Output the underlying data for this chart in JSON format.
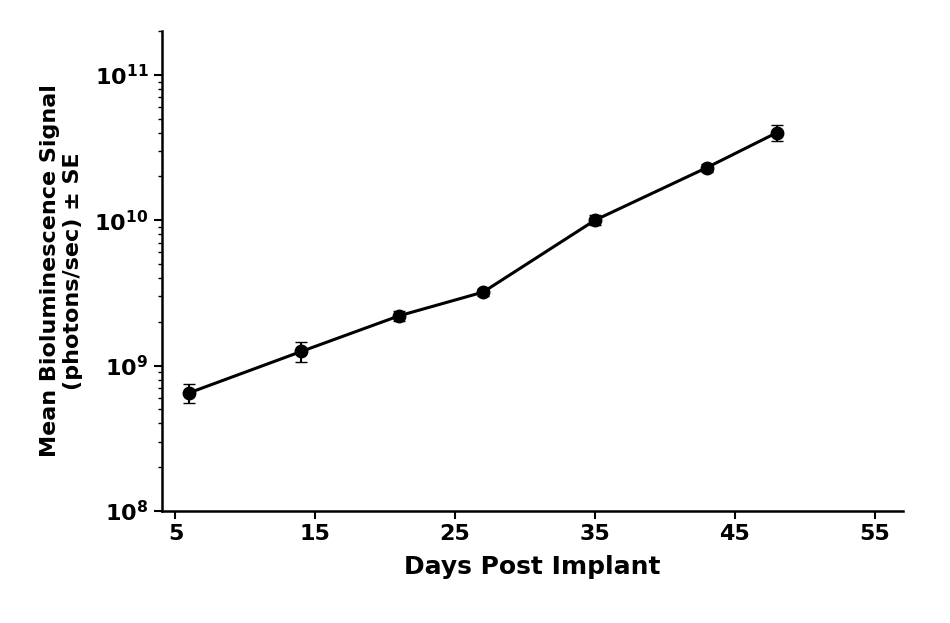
{
  "x": [
    6,
    14,
    21,
    27,
    35,
    43,
    48
  ],
  "y": [
    650000000.0,
    1250000000.0,
    2200000000.0,
    3200000000.0,
    10000000000.0,
    23000000000.0,
    40000000000.0
  ],
  "yerr_lower": [
    100000000.0,
    200000000.0,
    180000000.0,
    180000000.0,
    800000000.0,
    1500000000.0,
    5000000000.0
  ],
  "yerr_upper": [
    100000000.0,
    200000000.0,
    180000000.0,
    180000000.0,
    800000000.0,
    1500000000.0,
    5000000000.0
  ],
  "xlabel": "Days Post Implant",
  "ylabel": "Mean Bioluminescence Signal\n(photons/sec) ± SE",
  "xlim": [
    4,
    57
  ],
  "ylim": [
    100000000.0,
    200000000000.0
  ],
  "xticks": [
    5,
    15,
    25,
    35,
    45,
    55
  ],
  "xtick_labels": [
    "5",
    "15",
    "25",
    "35",
    "45",
    "55"
  ],
  "line_color": "#000000",
  "marker_color": "#000000",
  "marker_size": 9,
  "line_width": 2.2,
  "capsize": 4,
  "elinewidth": 1.5,
  "xlabel_fontsize": 18,
  "ylabel_fontsize": 16,
  "tick_fontsize": 16,
  "background_color": "#ffffff"
}
